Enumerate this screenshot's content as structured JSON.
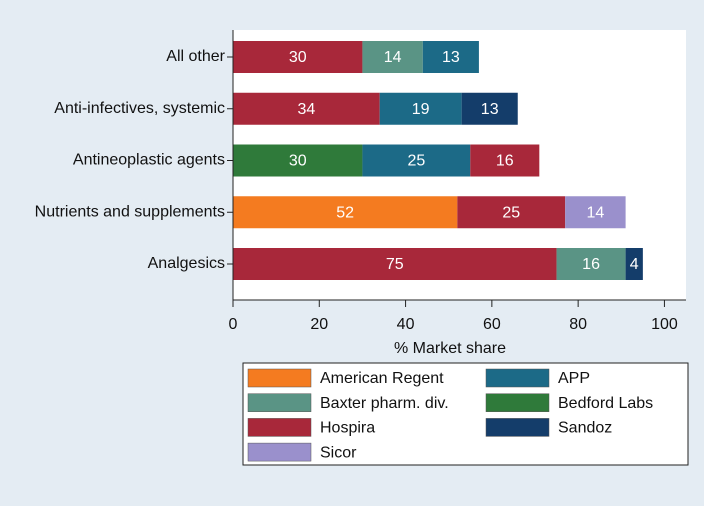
{
  "chart_data": {
    "type": "stacked_bar_horizontal",
    "xlabel": "% Market share",
    "xlim": [
      0,
      105
    ],
    "xticks": [
      0,
      20,
      40,
      60,
      80,
      100
    ],
    "series": [
      {
        "name": "American Regent",
        "color": "#f47b20"
      },
      {
        "name": "Baxter pharm. div.",
        "color": "#5a9485"
      },
      {
        "name": "Hospira",
        "color": "#a8283a"
      },
      {
        "name": "Sicor",
        "color": "#9a90cc"
      },
      {
        "name": "APP",
        "color": "#1c6a87"
      },
      {
        "name": "Bedford Labs",
        "color": "#2f7a3a"
      },
      {
        "name": "Sandoz",
        "color": "#143d6a"
      }
    ],
    "bars": [
      {
        "category": "All other",
        "segments": [
          {
            "series": "Hospira",
            "value": 30
          },
          {
            "series": "Baxter pharm. div.",
            "value": 14
          },
          {
            "series": "APP",
            "value": 13
          }
        ]
      },
      {
        "category": "Anti-infectives, systemic",
        "segments": [
          {
            "series": "Hospira",
            "value": 34
          },
          {
            "series": "APP",
            "value": 19
          },
          {
            "series": "Sandoz",
            "value": 13
          }
        ]
      },
      {
        "category": "Antineoplastic agents",
        "segments": [
          {
            "series": "Bedford Labs",
            "value": 30
          },
          {
            "series": "APP",
            "value": 25
          },
          {
            "series": "Hospira",
            "value": 16
          }
        ]
      },
      {
        "category": "Nutrients and supplements",
        "segments": [
          {
            "series": "American Regent",
            "value": 52
          },
          {
            "series": "Hospira",
            "value": 25
          },
          {
            "series": "Sicor",
            "value": 14
          }
        ]
      },
      {
        "category": "Analgesics",
        "segments": [
          {
            "series": "Hospira",
            "value": 75
          },
          {
            "series": "Baxter pharm. div.",
            "value": 16
          },
          {
            "series": "Sandoz",
            "value": 4
          }
        ]
      }
    ]
  }
}
